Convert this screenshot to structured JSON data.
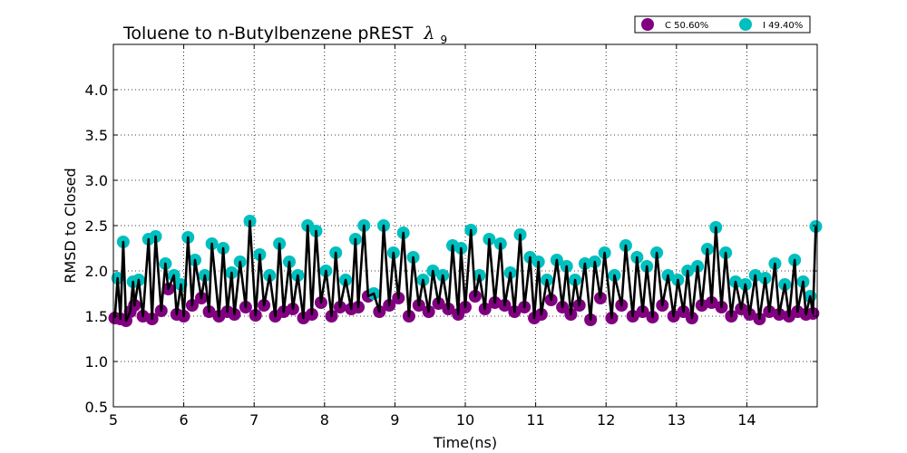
{
  "chart_data": {
    "type": "scatter",
    "title": "Toluene to n-Butylbenzene pREST",
    "title_symbol": "λ",
    "title_subscript": "9",
    "xlabel": "Time(ns)",
    "ylabel": "RMSD to Closed",
    "xlim": [
      5,
      15
    ],
    "ylim": [
      0.5,
      4.5
    ],
    "xticks": [
      "5",
      "6",
      "7",
      "8",
      "9",
      "10",
      "11",
      "12",
      "13",
      "14"
    ],
    "yticks": [
      "0.5",
      "1.0",
      "1.5",
      "2.0",
      "2.5",
      "3.0",
      "3.5",
      "4.0"
    ],
    "grid": true,
    "legend_position": "top-right",
    "line_color": "#000000",
    "series": [
      {
        "name": "C 50.60%",
        "color": "#800080",
        "x": [
          5.02,
          5.1,
          5.18,
          5.24,
          5.3,
          5.42,
          5.55,
          5.68,
          5.78,
          5.9,
          6.0,
          6.12,
          6.25,
          6.36,
          6.5,
          6.62,
          6.72,
          6.88,
          7.02,
          7.14,
          7.3,
          7.42,
          7.55,
          7.7,
          7.82,
          7.95,
          8.1,
          8.22,
          8.38,
          8.48,
          8.62,
          8.78,
          8.92,
          9.05,
          9.2,
          9.34,
          9.48,
          9.62,
          9.76,
          9.9,
          10.0,
          10.14,
          10.28,
          10.42,
          10.56,
          10.7,
          10.84,
          10.98,
          11.08,
          11.22,
          11.38,
          11.5,
          11.62,
          11.78,
          11.92,
          12.08,
          12.22,
          12.38,
          12.52,
          12.66,
          12.8,
          12.96,
          13.1,
          13.22,
          13.36,
          13.5,
          13.64,
          13.78,
          13.92,
          14.04,
          14.18,
          14.32,
          14.46,
          14.6,
          14.72,
          14.84,
          14.94
        ],
        "y": [
          1.48,
          1.47,
          1.45,
          1.55,
          1.62,
          1.5,
          1.47,
          1.56,
          1.8,
          1.52,
          1.5,
          1.62,
          1.7,
          1.55,
          1.5,
          1.55,
          1.52,
          1.6,
          1.51,
          1.62,
          1.5,
          1.55,
          1.58,
          1.48,
          1.52,
          1.65,
          1.5,
          1.6,
          1.58,
          1.6,
          1.72,
          1.55,
          1.62,
          1.7,
          1.5,
          1.62,
          1.55,
          1.64,
          1.58,
          1.52,
          1.6,
          1.72,
          1.58,
          1.65,
          1.62,
          1.55,
          1.6,
          1.48,
          1.52,
          1.68,
          1.6,
          1.52,
          1.62,
          1.46,
          1.7,
          1.48,
          1.62,
          1.5,
          1.55,
          1.49,
          1.62,
          1.5,
          1.55,
          1.48,
          1.62,
          1.65,
          1.6,
          1.5,
          1.58,
          1.52,
          1.47,
          1.55,
          1.52,
          1.5,
          1.55,
          1.52,
          1.53
        ]
      },
      {
        "name": "I 49.40%",
        "color": "#00bfbf",
        "x": [
          5.06,
          5.14,
          5.28,
          5.36,
          5.5,
          5.6,
          5.74,
          5.86,
          5.96,
          6.06,
          6.16,
          6.3,
          6.4,
          6.56,
          6.68,
          6.8,
          6.94,
          7.08,
          7.22,
          7.36,
          7.5,
          7.62,
          7.76,
          7.88,
          8.02,
          8.16,
          8.3,
          8.44,
          8.56,
          8.7,
          8.84,
          8.98,
          9.12,
          9.26,
          9.4,
          9.54,
          9.68,
          9.82,
          9.94,
          10.08,
          10.2,
          10.34,
          10.5,
          10.64,
          10.78,
          10.92,
          11.04,
          11.16,
          11.3,
          11.44,
          11.56,
          11.7,
          11.84,
          11.98,
          12.12,
          12.28,
          12.44,
          12.58,
          12.72,
          12.88,
          13.02,
          13.16,
          13.3,
          13.44,
          13.56,
          13.7,
          13.84,
          13.98,
          14.12,
          14.26,
          14.4,
          14.54,
          14.68,
          14.8,
          14.9,
          14.98
        ],
        "y": [
          1.92,
          2.32,
          1.88,
          1.9,
          2.35,
          2.38,
          2.08,
          1.95,
          1.85,
          2.37,
          2.12,
          1.95,
          2.3,
          2.25,
          1.98,
          2.1,
          2.55,
          2.18,
          1.95,
          2.3,
          2.1,
          1.95,
          2.5,
          2.44,
          2.0,
          2.2,
          1.9,
          2.35,
          2.5,
          1.75,
          2.5,
          2.2,
          2.42,
          2.15,
          1.9,
          2.0,
          1.95,
          2.28,
          2.25,
          2.45,
          1.95,
          2.35,
          2.3,
          1.98,
          2.4,
          2.15,
          2.1,
          1.9,
          2.12,
          2.05,
          1.9,
          2.08,
          2.1,
          2.2,
          1.95,
          2.28,
          2.15,
          2.05,
          2.2,
          1.95,
          1.9,
          2.0,
          2.05,
          2.24,
          2.48,
          2.2,
          1.88,
          1.85,
          1.95,
          1.92,
          2.08,
          1.85,
          2.12,
          1.88,
          1.72,
          2.49
        ]
      }
    ]
  }
}
